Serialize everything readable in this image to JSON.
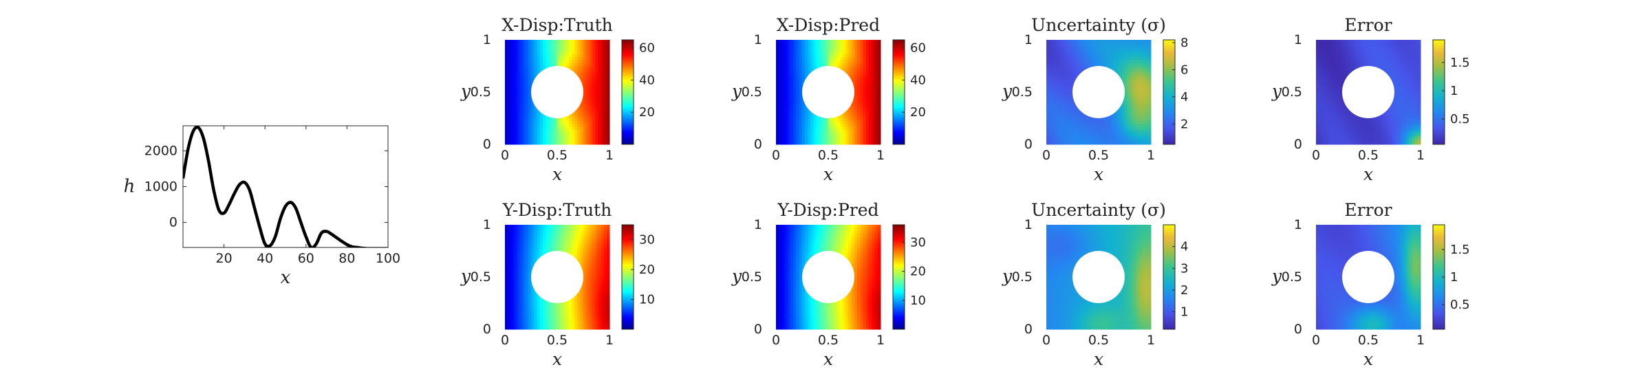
{
  "chart_data": [
    {
      "id": "h-profile",
      "type": "line",
      "xlabel": "x",
      "ylabel": "h",
      "xlim": [
        0,
        100
      ],
      "ylim": [
        -700,
        2700
      ],
      "xticks": [
        20,
        40,
        60,
        80,
        100
      ],
      "yticks": [
        0,
        1000,
        2000
      ],
      "series": [
        {
          "color": "#000000",
          "x": [
            0,
            2.5,
            5,
            7.5,
            10,
            12.5,
            15,
            17.5,
            20,
            22.5,
            25,
            27.5,
            30,
            32.5,
            35,
            37.5,
            40,
            42.5,
            45,
            47.5,
            50,
            52.5,
            55,
            57.5,
            60,
            62.5,
            65,
            67.5,
            70,
            72.5,
            75,
            77.5,
            80,
            82.5,
            85,
            87.5,
            90,
            92.5,
            95,
            97.5,
            100
          ],
          "y": [
            1230,
            2050,
            2550,
            2650,
            2350,
            1700,
            900,
            350,
            260,
            500,
            800,
            1050,
            1120,
            900,
            380,
            -150,
            -600,
            -650,
            -400,
            100,
            450,
            560,
            400,
            0,
            -400,
            -700,
            -600,
            -300,
            -250,
            -330,
            -430,
            -530,
            -620,
            -680,
            -700,
            -720,
            -730,
            -730,
            -730,
            -730,
            -730
          ]
        }
      ]
    },
    {
      "id": "x-disp-truth",
      "type": "heatmap",
      "title": "X-Disp:Truth",
      "xlabel": "x",
      "ylabel": "y",
      "xlim": [
        0,
        1
      ],
      "ylim": [
        0,
        1
      ],
      "xticks": [
        "0",
        "0.5",
        "1"
      ],
      "yticks": [
        "0",
        "0.5",
        "1"
      ],
      "colormap": "jet",
      "clim": [
        0,
        65
      ],
      "colorbar_ticks": [
        20,
        40,
        60
      ],
      "hole": {
        "cx": 0.5,
        "cy": 0.5,
        "r": 0.25
      },
      "field": "x_disp"
    },
    {
      "id": "x-disp-pred",
      "type": "heatmap",
      "title": "X-Disp:Pred",
      "xlabel": "x",
      "ylabel": "y",
      "xlim": [
        0,
        1
      ],
      "ylim": [
        0,
        1
      ],
      "xticks": [
        "0",
        "0.5",
        "1"
      ],
      "yticks": [
        "0",
        "0.5",
        "1"
      ],
      "colormap": "jet",
      "clim": [
        0,
        65
      ],
      "colorbar_ticks": [
        20,
        40,
        60
      ],
      "hole": {
        "cx": 0.5,
        "cy": 0.5,
        "r": 0.25
      },
      "field": "x_disp"
    },
    {
      "id": "x-uncertainty",
      "type": "heatmap",
      "title": "Uncertainty (σ)",
      "xlabel": "x",
      "ylabel": "y",
      "xlim": [
        0,
        1
      ],
      "ylim": [
        0,
        1
      ],
      "xticks": [
        "0",
        "0.5",
        "1"
      ],
      "yticks": [
        "0",
        "0.5",
        "1"
      ],
      "colormap": "parula",
      "clim": [
        0.5,
        8.2
      ],
      "colorbar_ticks": [
        2,
        4,
        6,
        8
      ],
      "hole": {
        "cx": 0.5,
        "cy": 0.5,
        "r": 0.25
      },
      "field": "x_unc"
    },
    {
      "id": "x-error",
      "type": "heatmap",
      "title": "Error",
      "xlabel": "x",
      "ylabel": "y",
      "xlim": [
        0,
        1
      ],
      "ylim": [
        0,
        1
      ],
      "xticks": [
        "0",
        "0.5",
        "1"
      ],
      "yticks": [
        "0",
        "0.5",
        "1"
      ],
      "colormap": "parula",
      "clim": [
        0.05,
        1.9
      ],
      "colorbar_ticks": [
        "0.5",
        "1",
        "1.5"
      ],
      "hole": {
        "cx": 0.5,
        "cy": 0.5,
        "r": 0.25
      },
      "field": "x_err"
    },
    {
      "id": "y-disp-truth",
      "type": "heatmap",
      "title": "Y-Disp:Truth",
      "xlabel": "x",
      "ylabel": "y",
      "xlim": [
        0,
        1
      ],
      "ylim": [
        0,
        1
      ],
      "xticks": [
        "0",
        "0.5",
        "1"
      ],
      "yticks": [
        "0",
        "0.5",
        "1"
      ],
      "colormap": "jet",
      "clim": [
        0,
        35
      ],
      "colorbar_ticks": [
        10,
        20,
        30
      ],
      "hole": {
        "cx": 0.5,
        "cy": 0.5,
        "r": 0.25
      },
      "field": "y_disp"
    },
    {
      "id": "y-disp-pred",
      "type": "heatmap",
      "title": "Y-Disp:Pred",
      "xlabel": "x",
      "ylabel": "y",
      "xlim": [
        0,
        1
      ],
      "ylim": [
        0,
        1
      ],
      "xticks": [
        "0",
        "0.5",
        "1"
      ],
      "yticks": [
        "0",
        "0.5",
        "1"
      ],
      "colormap": "jet",
      "clim": [
        0,
        36
      ],
      "colorbar_ticks": [
        10,
        20,
        30
      ],
      "hole": {
        "cx": 0.5,
        "cy": 0.5,
        "r": 0.25
      },
      "field": "y_disp"
    },
    {
      "id": "y-uncertainty",
      "type": "heatmap",
      "title": "Uncertainty (σ)",
      "xlabel": "x",
      "ylabel": "y",
      "xlim": [
        0,
        1
      ],
      "ylim": [
        0,
        1
      ],
      "xticks": [
        "0",
        "0.5",
        "1"
      ],
      "yticks": [
        "0",
        "0.5",
        "1"
      ],
      "colormap": "parula",
      "clim": [
        0.2,
        5
      ],
      "colorbar_ticks": [
        1,
        2,
        3,
        4
      ],
      "hole": {
        "cx": 0.5,
        "cy": 0.5,
        "r": 0.25
      },
      "field": "y_unc"
    },
    {
      "id": "y-error",
      "type": "heatmap",
      "title": "Error",
      "xlabel": "x",
      "ylabel": "y",
      "xlim": [
        0,
        1
      ],
      "ylim": [
        0,
        1
      ],
      "xticks": [
        "0",
        "0.5",
        "1"
      ],
      "yticks": [
        "0",
        "0.5",
        "1"
      ],
      "colormap": "parula",
      "clim": [
        0.05,
        1.95
      ],
      "colorbar_ticks": [
        "0.5",
        "1",
        "1.5"
      ],
      "hole": {
        "cx": 0.5,
        "cy": 0.5,
        "r": 0.25
      },
      "field": "y_err"
    }
  ]
}
